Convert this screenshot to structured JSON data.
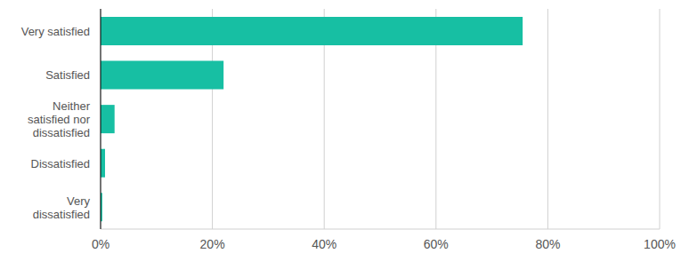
{
  "chart_data": {
    "type": "bar",
    "orientation": "horizontal",
    "categories": [
      "Very satisfied",
      "Satisfied",
      "Neither satisfied nor dissatisfied",
      "Dissatisfied",
      "Very dissatisfied"
    ],
    "values": [
      75.5,
      22,
      2.5,
      0.8,
      0.3
    ],
    "color": "#17bfa3",
    "xlim": [
      0,
      100
    ],
    "xticks": [
      {
        "value": 0,
        "label": "0%"
      },
      {
        "value": 20,
        "label": "20%"
      },
      {
        "value": 40,
        "label": "40%"
      },
      {
        "value": 60,
        "label": "60%"
      },
      {
        "value": 80,
        "label": "80%"
      },
      {
        "value": 100,
        "label": "100%"
      }
    ],
    "grid": true
  }
}
